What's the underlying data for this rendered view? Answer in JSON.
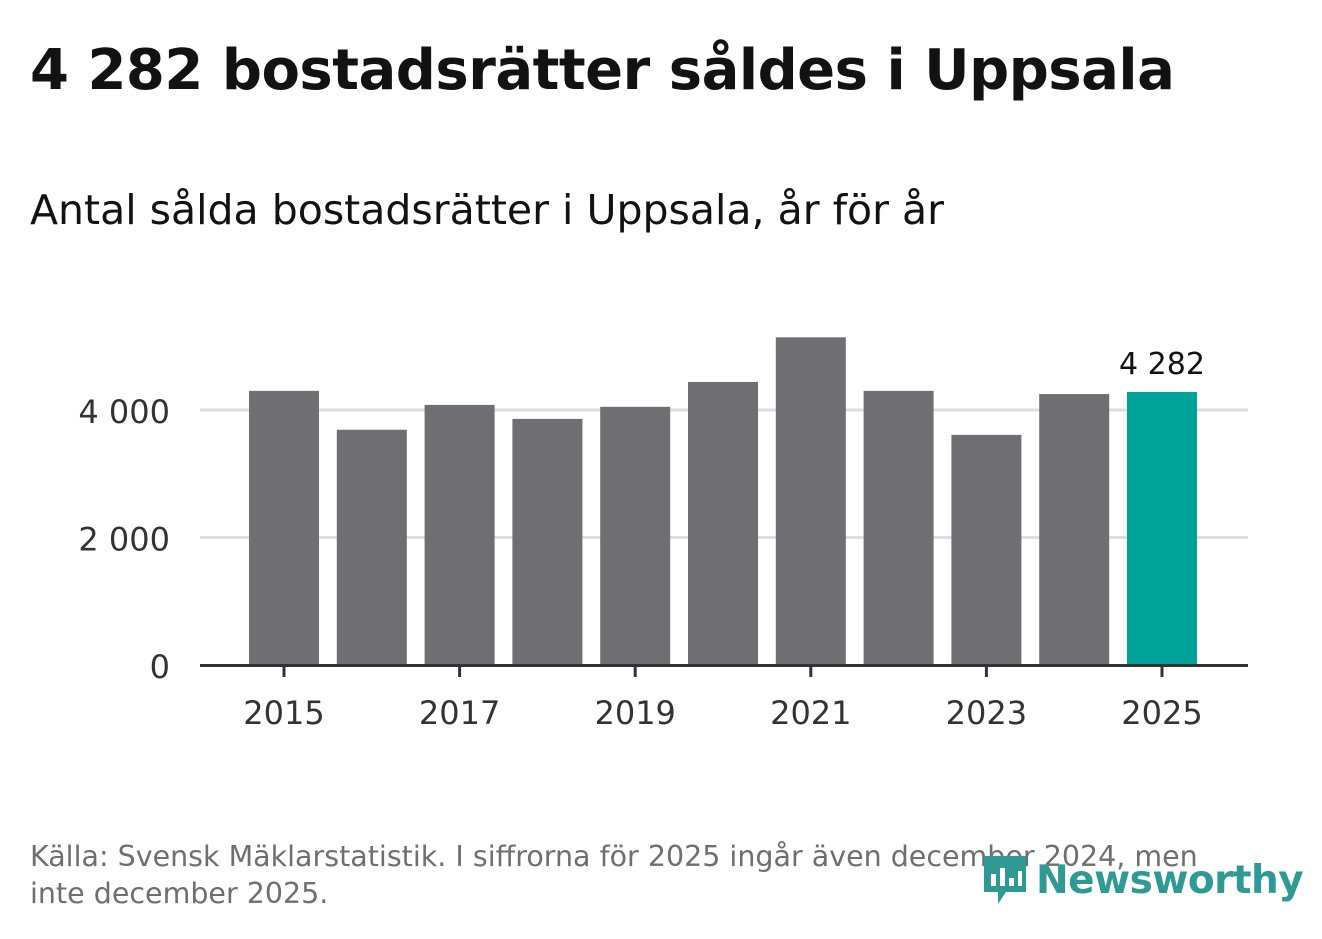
{
  "chart_data": {
    "type": "bar",
    "title": "4 282 bostadsrätter såldes i Uppsala",
    "subtitle": "Antal sålda bostadsrätter i Uppsala, år för år",
    "categories": [
      "2015",
      "2016",
      "2017",
      "2018",
      "2019",
      "2020",
      "2021",
      "2022",
      "2023",
      "2024",
      "2025"
    ],
    "values": [
      4300,
      3690,
      4080,
      3860,
      4050,
      4440,
      5140,
      4300,
      3610,
      4250,
      4282
    ],
    "highlight_index": 10,
    "highlight_label": "4 282",
    "x_tick_labels": [
      "2015",
      "2017",
      "2019",
      "2021",
      "2023",
      "2025"
    ],
    "y_ticks": [
      0,
      2000,
      4000
    ],
    "y_tick_labels": [
      "0",
      "2 000",
      "4 000"
    ],
    "ylim": [
      0,
      5200
    ],
    "xlabel": "",
    "ylabel": "",
    "grid": true,
    "colors": {
      "bar": "#6f6e73",
      "highlight": "#00a398",
      "grid": "#dedede",
      "axis": "#333333"
    }
  },
  "source": "Källa: Svensk Mäklarstatistik. I siffrorna för 2025 ingår även december 2024, men inte december 2025.",
  "logo": {
    "text": "Newsworthy",
    "color": "#2f9a94"
  }
}
